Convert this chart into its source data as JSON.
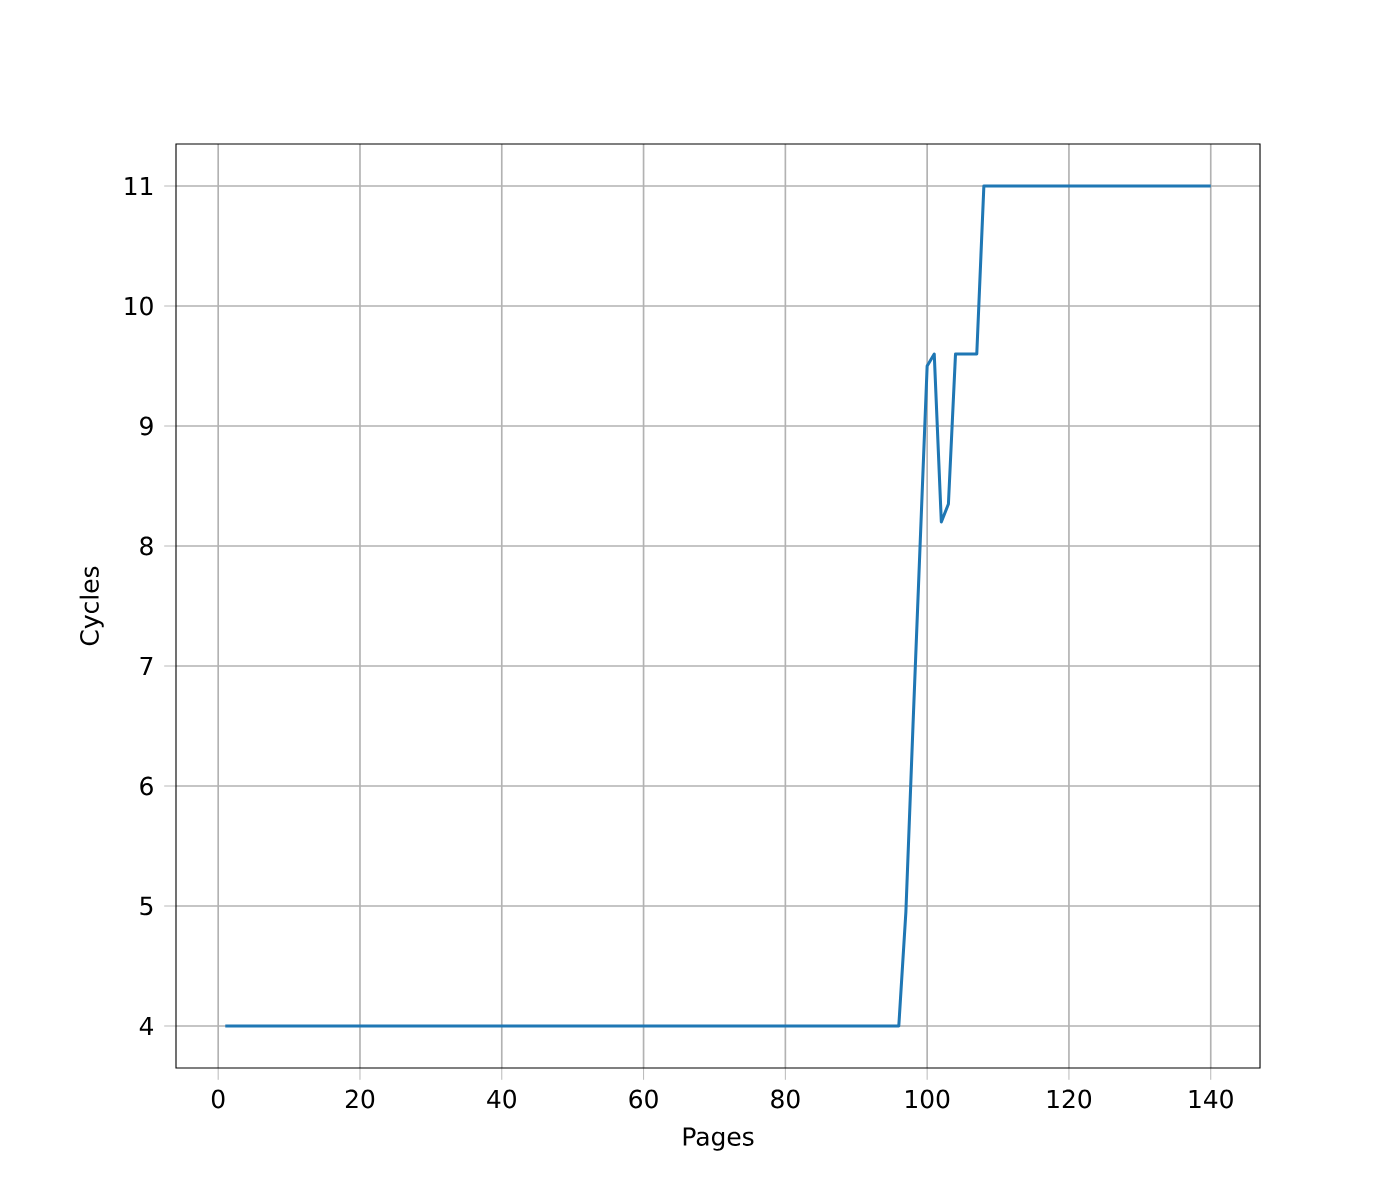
{
  "chart_data": {
    "type": "line",
    "xlabel": "Pages",
    "ylabel": "Cycles",
    "series": [
      {
        "color": "#1f77b4",
        "x": [
          1,
          96,
          97,
          98,
          99,
          100,
          101,
          102,
          103,
          104,
          107,
          108,
          140
        ],
        "values": [
          4,
          4,
          4.95,
          6.5,
          8.0,
          9.5,
          9.6,
          8.2,
          8.35,
          9.6,
          9.6,
          11,
          11
        ]
      }
    ],
    "xlim": [
      -5.95,
      146.95
    ],
    "ylim": [
      3.65,
      11.35
    ],
    "xticks": [
      0,
      20,
      40,
      60,
      80,
      100,
      120,
      140
    ],
    "yticks": [
      4,
      5,
      6,
      7,
      8,
      9,
      10,
      11
    ],
    "grid": true,
    "marker": "none",
    "line_style": "solid"
  }
}
